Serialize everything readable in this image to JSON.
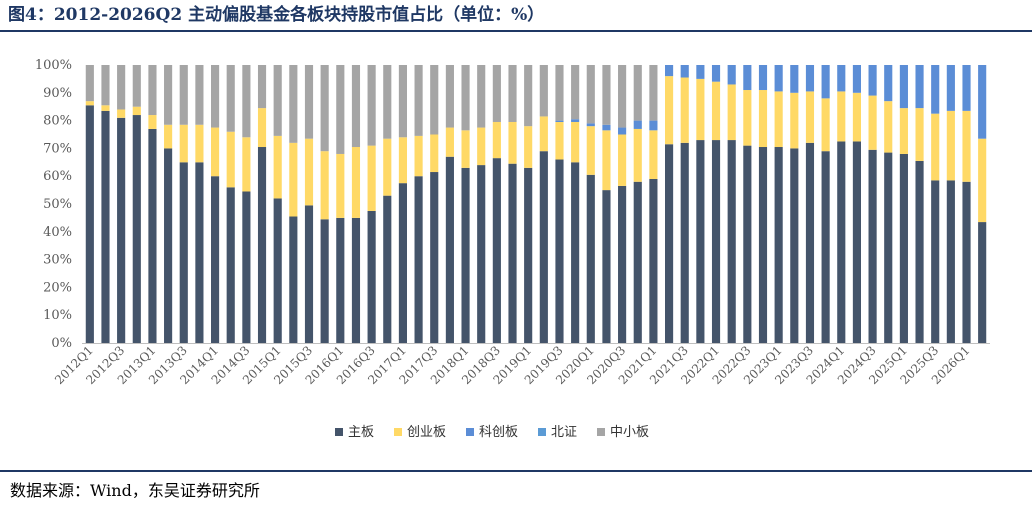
{
  "title": "图4：2012-2026Q2 主动偏股基金各板块持股市值占比（单位：%）",
  "source": "数据来源：Wind，东吴证券研究所",
  "chart_data": {
    "type": "bar",
    "stacked": true,
    "ylim": [
      0,
      100
    ],
    "ytick_labels": [
      "0%",
      "10%",
      "20%",
      "30%",
      "40%",
      "50%",
      "60%",
      "70%",
      "80%",
      "90%",
      "100%"
    ],
    "grid": false,
    "legend_position": "bottom",
    "categories": [
      "2012Q1",
      "2012Q2",
      "2012Q3",
      "2012Q4",
      "2013Q1",
      "2013Q2",
      "2013Q3",
      "2013Q4",
      "2014Q1",
      "2014Q2",
      "2014Q3",
      "2014Q4",
      "2015Q1",
      "2015Q2",
      "2015Q3",
      "2015Q4",
      "2016Q1",
      "2016Q2",
      "2016Q3",
      "2016Q4",
      "2017Q1",
      "2017Q2",
      "2017Q3",
      "2017Q4",
      "2018Q1",
      "2018Q2",
      "2018Q3",
      "2018Q4",
      "2019Q1",
      "2019Q2",
      "2019Q3",
      "2019Q4",
      "2020Q1",
      "2020Q2",
      "2020Q3",
      "2020Q4",
      "2021Q1",
      "2021Q2",
      "2021Q3",
      "2021Q4",
      "2022Q1",
      "2022Q2",
      "2022Q3",
      "2022Q4",
      "2023Q1",
      "2023Q2",
      "2023Q3",
      "2023Q4",
      "2024Q1",
      "2024Q2",
      "2024Q3",
      "2024Q4",
      "2025Q1",
      "2025Q2",
      "2025Q3",
      "2025Q4",
      "2026Q1",
      "2026Q2"
    ],
    "series": [
      {
        "name": "主板",
        "color": "#44546a",
        "values": [
          85.5,
          83.5,
          81,
          82,
          77,
          70,
          65,
          65,
          60,
          56,
          54.5,
          70.5,
          52,
          45.5,
          49.5,
          44.5,
          45,
          45,
          47.5,
          53,
          57.5,
          60,
          61.5,
          67,
          63,
          64,
          66.5,
          64.5,
          63,
          69,
          66,
          65,
          60.5,
          55,
          56.5,
          58,
          59,
          71.5,
          72,
          73,
          73,
          73,
          71,
          70.5,
          70.5,
          70,
          72,
          69,
          72.5,
          72.5,
          69.5,
          68.5,
          68,
          65.5,
          58.5,
          58.5,
          58,
          43.5
        ]
      },
      {
        "name": "创业板",
        "color": "#ffd966",
        "values": [
          1.5,
          2,
          3,
          3,
          5,
          8.5,
          13.5,
          13.5,
          17.5,
          20,
          19.5,
          14,
          22.5,
          26.5,
          24,
          24.5,
          23,
          25.5,
          23.5,
          20.5,
          16.5,
          14.5,
          13.5,
          10.5,
          13.5,
          13.5,
          13,
          15,
          15,
          12.5,
          13.5,
          14.5,
          17.5,
          21.5,
          18.5,
          19,
          17.5,
          24.5,
          23.5,
          22,
          21,
          20,
          20,
          20.5,
          20,
          20,
          18.5,
          19,
          18,
          17.5,
          19.5,
          18.5,
          16.5,
          19,
          24,
          25,
          25.5,
          30
        ]
      },
      {
        "name": "科创板",
        "color": "#5b8dd6",
        "values": [
          0,
          0,
          0,
          0,
          0,
          0,
          0,
          0,
          0,
          0,
          0,
          0,
          0,
          0,
          0,
          0,
          0,
          0,
          0,
          0,
          0,
          0,
          0,
          0,
          0,
          0,
          0,
          0,
          0,
          0,
          0.5,
          1,
          1,
          2,
          2.5,
          3,
          3.5,
          4,
          4.5,
          5,
          6,
          7,
          9,
          9,
          9.5,
          10,
          9.5,
          12,
          9.5,
          10,
          11,
          13,
          15.5,
          15.5,
          17.5,
          16.5,
          16.5,
          26.5
        ]
      },
      {
        "name": "北证",
        "color": "#5b9bd5",
        "values": [
          0,
          0,
          0,
          0,
          0,
          0,
          0,
          0,
          0,
          0,
          0,
          0,
          0,
          0,
          0,
          0,
          0,
          0,
          0,
          0,
          0,
          0,
          0,
          0,
          0,
          0,
          0,
          0,
          0,
          0,
          0,
          0,
          0,
          0,
          0,
          0,
          0,
          0,
          0,
          0,
          0,
          0,
          0,
          0,
          0,
          0,
          0,
          0,
          0,
          0,
          0,
          0,
          0,
          0,
          0,
          0,
          0,
          0
        ]
      },
      {
        "name": "中小板",
        "color": "#a5a5a5",
        "values": [
          13,
          14.5,
          16,
          15,
          18,
          21.5,
          21.5,
          21.5,
          22.5,
          24,
          26,
          15.5,
          25.5,
          28,
          26.5,
          31,
          32,
          29.5,
          29,
          26.5,
          26,
          25.5,
          25,
          22.5,
          23.5,
          22.5,
          20.5,
          20.5,
          22,
          18.5,
          20,
          19.5,
          21,
          21.5,
          22.5,
          20,
          20,
          0,
          0,
          0,
          0,
          0,
          0,
          0,
          0,
          0,
          0,
          0,
          0,
          0,
          0,
          0,
          0,
          0,
          0,
          0,
          0,
          0
        ]
      }
    ]
  }
}
